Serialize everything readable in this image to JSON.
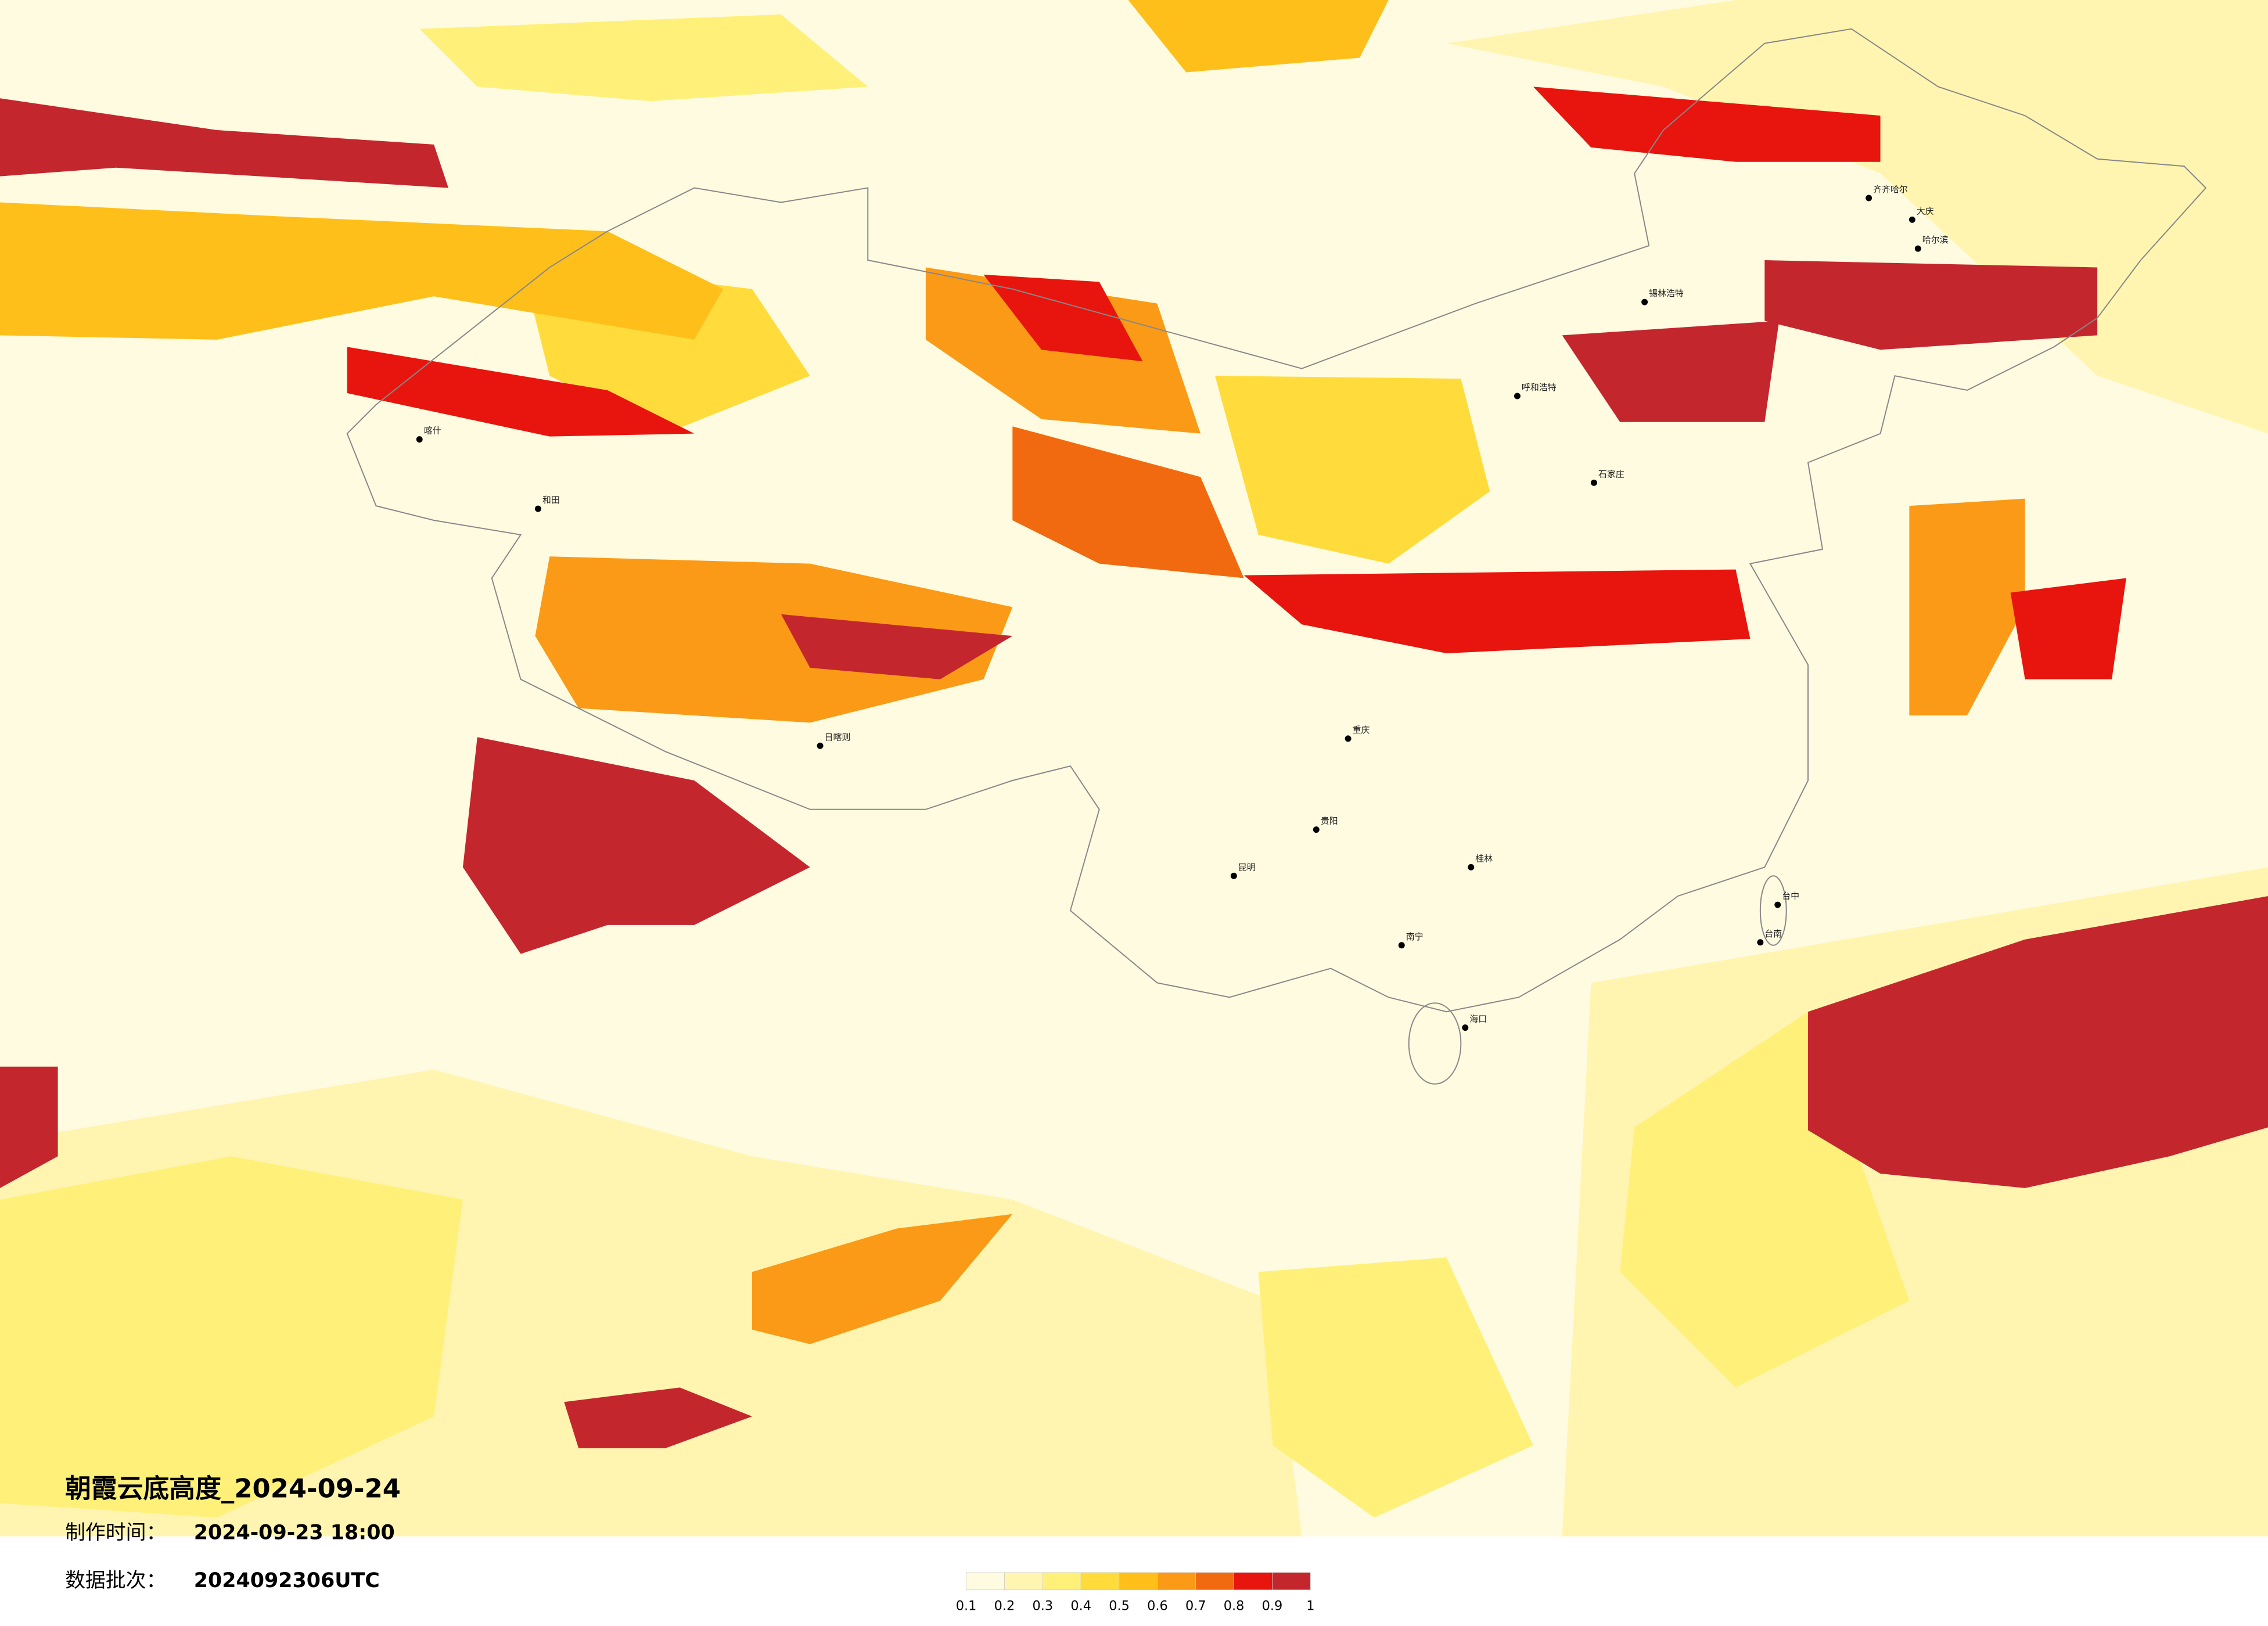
{
  "map": {
    "title": "朝霞云底高度_2024-09-24",
    "made_time_label": "制作时间：",
    "made_time": "2024-09-23 18:00",
    "batch_label": "数据批次：",
    "batch": "2024092306UTC",
    "colorbar": {
      "ticks": [
        0.1,
        0.2,
        0.3,
        0.4,
        0.5,
        0.6,
        0.7,
        0.8,
        0.9,
        1
      ],
      "colors": [
        "#fffbe0",
        "#fff5b0",
        "#fff07a",
        "#ffdc3c",
        "#ffbf1a",
        "#fb9a16",
        "#f26a10",
        "#e8140e",
        "#c4262e"
      ]
    },
    "cities": [
      "喀什",
      "和田",
      "日喀则",
      "昆明",
      "重庆",
      "贵阳",
      "南宁",
      "桂林",
      "海口",
      "呼和浩特",
      "石家庄",
      "锡林浩特",
      "齐齐哈尔",
      "大庆",
      "哈尔滨",
      "台中",
      "台南"
    ]
  }
}
